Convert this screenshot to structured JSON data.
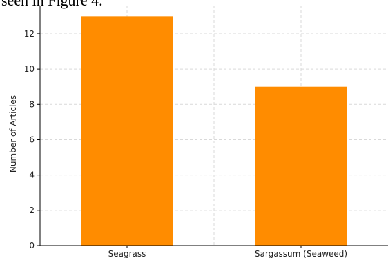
{
  "caption": "seen in Figure 4.",
  "chart_data": {
    "type": "bar",
    "categories": [
      "Seagrass",
      "Sargassum (Seaweed)"
    ],
    "values": [
      13,
      9
    ],
    "xlabel": "",
    "ylabel": "Number of Articles",
    "ylim": [
      0,
      13.6
    ],
    "yticks": [
      0,
      2,
      4,
      6,
      8,
      10,
      12
    ],
    "grid": true,
    "bar_color": "#ff8c00"
  }
}
